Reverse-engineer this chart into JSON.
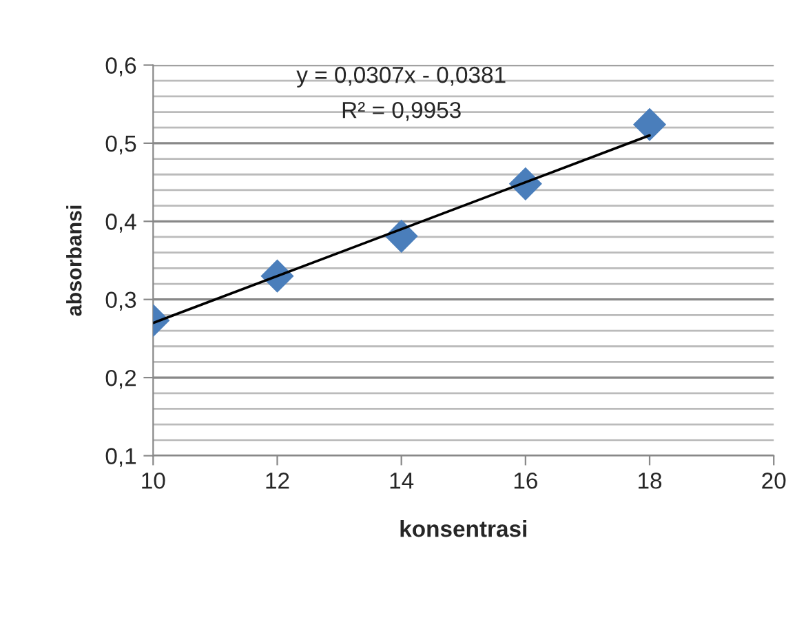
{
  "chart_data": {
    "type": "scatter",
    "xlabel": "konsentrasi",
    "ylabel": "absorbansi",
    "annotations": [
      "y = 0,0307x - 0,0381",
      "R² = 0,9953"
    ],
    "series": [
      {
        "color": "#4a7ebb",
        "marker": "diamond",
        "x": [
          10,
          12,
          14,
          16,
          18
        ],
        "values": [
          0.273,
          0.33,
          0.381,
          0.448,
          0.524
        ]
      },
      {
        "type": "line",
        "color": "#000000",
        "marker": "none",
        "line_style": "solid",
        "x": [
          10,
          18
        ],
        "values": [
          0.27,
          0.51
        ]
      }
    ],
    "xlim": [
      10,
      20
    ],
    "xticks": [
      10,
      12,
      14,
      16,
      18,
      20
    ],
    "ylim": [
      0.1,
      0.6
    ],
    "yticks": [
      {
        "value": 0.1,
        "label": "0,1"
      },
      {
        "value": 0.2,
        "label": "0,2"
      },
      {
        "value": 0.3,
        "label": "0,3"
      },
      {
        "value": 0.4,
        "label": "0,4"
      },
      {
        "value": 0.5,
        "label": "0,5"
      },
      {
        "value": 0.6,
        "label": "0,6"
      }
    ],
    "grid": "y"
  }
}
